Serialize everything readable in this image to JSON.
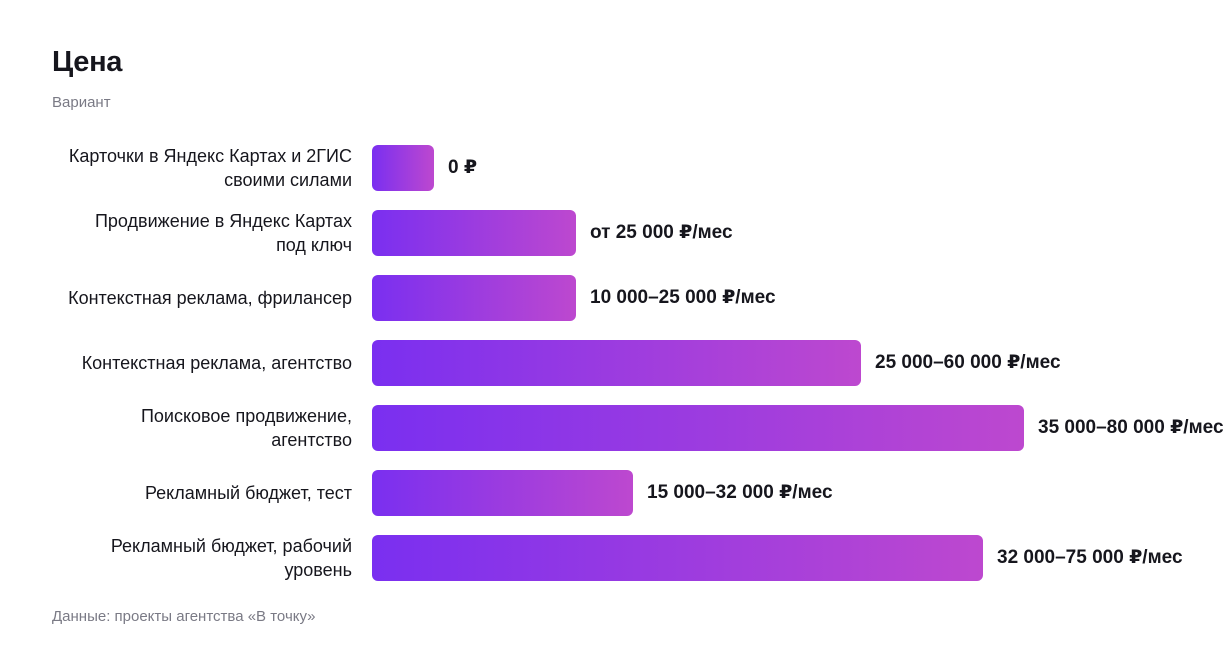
{
  "header": {
    "title": "Цена",
    "subtitle": "Вариант"
  },
  "footer": {
    "source": "Данные: проекты агентства «В точку»"
  },
  "colors": {
    "bar_gradient_start": "#7a2ff0",
    "bar_gradient_end": "#bd48cf",
    "text": "#16161d",
    "muted_text": "#7a7a85"
  },
  "chart_data": {
    "type": "bar",
    "orientation": "horizontal",
    "title": "Цена",
    "subtitle": "Вариант",
    "categories": [
      "Карточки в Яндекс Картах и 2ГИС своими силами",
      "Продвижение в Яндекс Картах под ключ",
      "Контекстная реклама, фрилансер",
      "Контекстная реклама, агентство",
      "Поисковое продвижение, агентство",
      "Рекламный бюджет, тест",
      "Рекламный бюджет, рабочий уровень"
    ],
    "values": [
      0,
      25000,
      25000,
      60000,
      80000,
      32000,
      75000
    ],
    "value_labels": [
      "0 ₽",
      "от 25 000 ₽/мес",
      "10 000–25 000 ₽/мес",
      "25 000–60 000 ₽/мес",
      "35 000–80 000 ₽/мес",
      "15 000–32 000 ₽/мес",
      "32 000–75 000 ₽/мес"
    ],
    "grid": false,
    "legend": "none",
    "source": "Данные: проекты агентства «В точку»"
  }
}
